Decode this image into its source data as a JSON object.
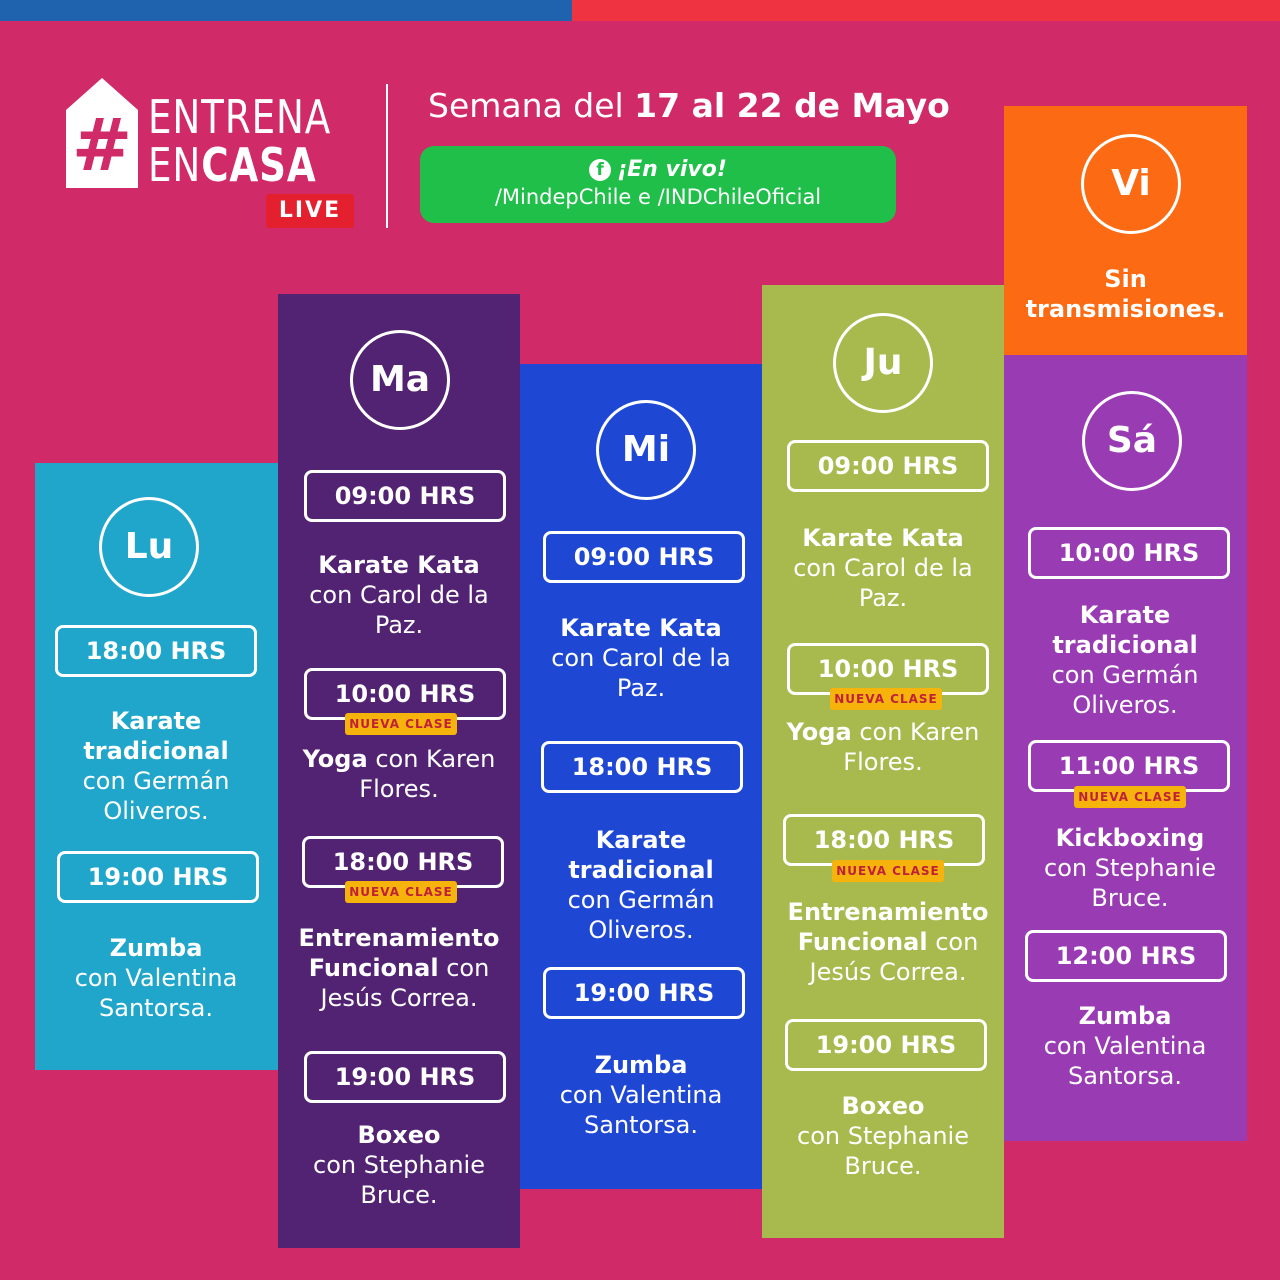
{
  "brand": {
    "line1": "ENTRENA",
    "line2_light": "EN",
    "line2_bold": "CASA",
    "hashtag": "#",
    "live": "LIVE"
  },
  "header": {
    "week_prefix": "Semana del",
    "week_dates": "17 al 22 de Mayo",
    "live_label": "¡En vivo!",
    "live_channels": "/MindepChile e /INDChileOficial",
    "facebook_glyph": "f"
  },
  "colors": {
    "background": "#d02a68",
    "lunes": "#21a6cb",
    "martes": "#522373",
    "miercoles": "#1e47d4",
    "jueves": "#a8b94d",
    "viernes": "#fc6b13",
    "sabado": "#993bb3",
    "live_green": "#1fbf4a",
    "new_tag": "#f6b30c"
  },
  "new_class_label": "NUEVA CLASE",
  "days": {
    "lu": {
      "label": "Lu",
      "slots": [
        {
          "time": "18:00 HRS",
          "name": "Karate tradicional",
          "rest": "con Germán Oliveros."
        },
        {
          "time": "19:00 HRS",
          "name": "Zumba",
          "rest": "con Valentina Santorsa."
        }
      ]
    },
    "ma": {
      "label": "Ma",
      "slots": [
        {
          "time": "09:00 HRS",
          "name": "Karate Kata",
          "rest": "con Carol de la Paz."
        },
        {
          "time": "10:00 HRS",
          "name": "Yoga",
          "rest": "con Karen Flores."
        },
        {
          "time": "18:00 HRS",
          "name": "Entrenamiento Funcional",
          "rest": "con Jesús Correa."
        },
        {
          "time": "19:00 HRS",
          "name": "Boxeo",
          "rest": "con Stephanie Bruce."
        }
      ]
    },
    "mi": {
      "label": "Mi",
      "slots": [
        {
          "time": "09:00 HRS",
          "name": "Karate Kata",
          "rest": "con Carol de la Paz."
        },
        {
          "time": "18:00 HRS",
          "name": "Karate tradicional",
          "rest": "con Germán Oliveros."
        },
        {
          "time": "19:00 HRS",
          "name": "Zumba",
          "rest": "con Valentina Santorsa."
        }
      ]
    },
    "ju": {
      "label": "Ju",
      "slots": [
        {
          "time": "09:00 HRS",
          "name": "Karate Kata",
          "rest": "con Carol de la Paz."
        },
        {
          "time": "10:00 HRS",
          "name": "Yoga",
          "rest": "con Karen Flores."
        },
        {
          "time": "18:00 HRS",
          "name": "Entrenamiento Funcional",
          "rest": "con Jesús Correa."
        },
        {
          "time": "19:00 HRS",
          "name": "Boxeo",
          "rest": "con Stephanie Bruce."
        }
      ]
    },
    "vi": {
      "label": "Vi",
      "note": "Sin transmisiones."
    },
    "sa": {
      "label": "Sá",
      "slots": [
        {
          "time": "10:00 HRS",
          "name": "Karate tradicional",
          "rest": "con Germán Oliveros."
        },
        {
          "time": "11:00 HRS",
          "name": "Kickboxing",
          "rest": "con Stephanie Bruce."
        },
        {
          "time": "12:00 HRS",
          "name": "Zumba",
          "rest": "con Valentina Santorsa."
        }
      ]
    }
  }
}
